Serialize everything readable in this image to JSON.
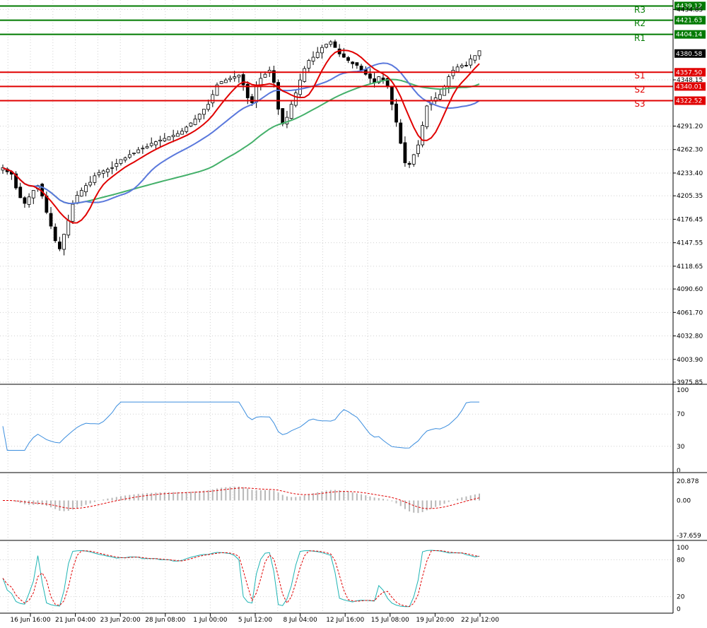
{
  "chart_data": [
    {
      "type": "candlestick",
      "title": "",
      "x_tick_labels": [
        "16 Jun 16:00",
        "21 Jun 04:00",
        "23 Jun 20:00",
        "28 Jun 08:00",
        "1 Jul 00:00",
        "5 Jul 12:00",
        "8 Jul 04:00",
        "12 Jul 16:00",
        "15 Jul 08:00",
        "19 Jul 20:00",
        "22 Jul 12:00"
      ],
      "y_tick_labels": [
        "4434.85",
        "4348.15",
        "4291.20",
        "4262.30",
        "4233.40",
        "4205.35",
        "4176.45",
        "4147.55",
        "4118.65",
        "4090.60",
        "4061.70",
        "4032.80",
        "4003.90",
        "3975.85"
      ],
      "ylim": [
        3975.85,
        4443
      ],
      "last_price": 4380.58,
      "levels": [
        {
          "name": "R3",
          "value": 4439.12,
          "color": "#007a00"
        },
        {
          "name": "R2",
          "value": 4421.63,
          "color": "#007a00"
        },
        {
          "name": "R1",
          "value": 4404.14,
          "color": "#007a00"
        },
        {
          "name": "S1",
          "value": 4357.5,
          "color": "#e00000"
        },
        {
          "name": "S2",
          "value": 4340.01,
          "color": "#e00000"
        },
        {
          "name": "S3",
          "value": 4322.52,
          "color": "#e00000"
        }
      ],
      "level_labels": [
        "4439.12",
        "4421.63",
        "4404.14",
        "4357.50",
        "4340.01",
        "4322.52"
      ],
      "last_price_label": "4380.58",
      "candles_close": [
        4240,
        4235,
        4232,
        4215,
        4203,
        4196,
        4204,
        4212,
        4218,
        4205,
        4185,
        4168,
        4150,
        4140,
        4158,
        4175,
        4195,
        4206,
        4212,
        4218,
        4222,
        4230,
        4234,
        4236,
        4238,
        4240,
        4245,
        4250,
        4252,
        4256,
        4258,
        4262,
        4264,
        4266,
        4270,
        4272,
        4274,
        4276,
        4278,
        4280,
        4282,
        4285,
        4290,
        4295,
        4300,
        4306,
        4312,
        4318,
        4330,
        4342,
        4346,
        4348,
        4350,
        4352,
        4354,
        4342,
        4326,
        4320,
        4340,
        4350,
        4355,
        4360,
        4345,
        4312,
        4294,
        4302,
        4318,
        4332,
        4348,
        4362,
        4372,
        4376,
        4382,
        4388,
        4392,
        4395,
        4388,
        4380,
        4376,
        4372,
        4368,
        4366,
        4360,
        4355,
        4350,
        4345,
        4352,
        4348,
        4340,
        4318,
        4296,
        4270,
        4246,
        4244,
        4256,
        4268,
        4292,
        4316,
        4322,
        4326,
        4330,
        4340,
        4352,
        4360,
        4364,
        4366,
        4366,
        4374,
        4378,
        4384
      ],
      "colors": {
        "bull": "#ffffff",
        "bear": "#000000",
        "wick": "#000000",
        "ma_fast": "#e00000",
        "ma_mid": "#5a78dc",
        "ma_slow": "#44b06a",
        "rsi": "#3c8ede",
        "macd_hist": "#b8b8b8",
        "macd_signal": "#e00000",
        "stoch_main": "#1eb4b4",
        "stoch_signal": "#e00000",
        "grid": "#d0d0d0"
      }
    },
    {
      "type": "line",
      "name": "",
      "y_tick_labels": [
        "100",
        "70",
        "30",
        "0"
      ],
      "ylim": [
        0,
        100
      ]
    },
    {
      "type": "bar",
      "name": "",
      "y_tick_labels": [
        "20.878",
        "0.00",
        "-37.659"
      ],
      "ylim": [
        -37.659,
        20.878
      ]
    },
    {
      "type": "line",
      "name": "",
      "y_tick_labels": [
        "100",
        "80",
        "20",
        "0"
      ],
      "ylim": [
        0,
        100
      ]
    }
  ]
}
